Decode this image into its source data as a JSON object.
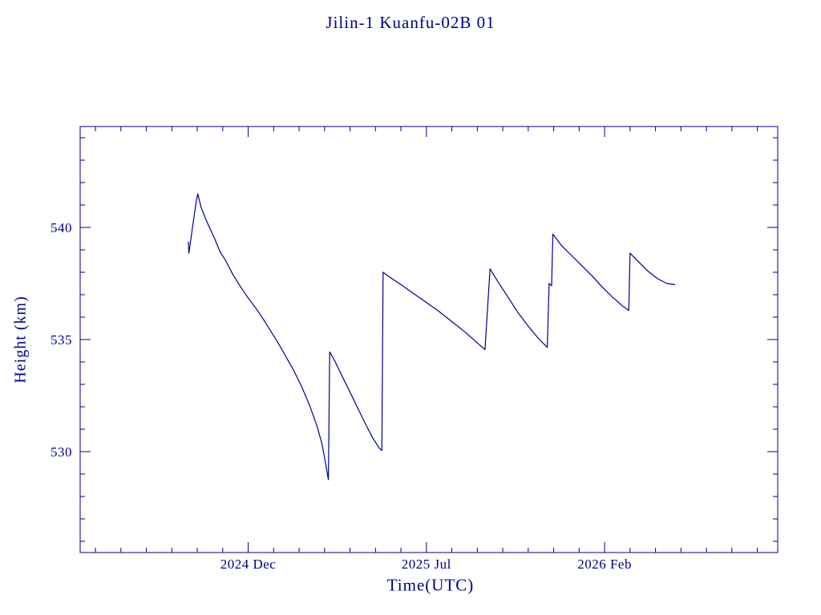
{
  "chart_data": {
    "type": "line",
    "title": "Jilin-1 Kuanfu-02B 01",
    "xlabel": "Time(UTC)",
    "ylabel": "Height (km)",
    "color": "#00008B",
    "grid": false,
    "legend": "none",
    "x_unit": "months relative to 2024 Dec",
    "xlim": [
      -6.6,
      20.8
    ],
    "ylim": [
      525.5,
      544.5
    ],
    "x_minor_step": 1,
    "y_minor_step": 1,
    "x_ticks": [
      {
        "pos": 0,
        "label": "2024 Dec"
      },
      {
        "pos": 7,
        "label": "2025 Jul"
      },
      {
        "pos": 14,
        "label": "2026 Feb"
      }
    ],
    "y_ticks": [
      530,
      535,
      540
    ],
    "series": [
      {
        "name": "orbit-height-km",
        "points": [
          [
            -2.35,
            539.35
          ],
          [
            -2.33,
            538.85
          ],
          [
            -2.2,
            539.9
          ],
          [
            -2.05,
            541.1
          ],
          [
            -1.98,
            541.5
          ],
          [
            -1.85,
            540.9
          ],
          [
            -1.7,
            540.45
          ],
          [
            -1.5,
            539.95
          ],
          [
            -1.3,
            539.45
          ],
          [
            -1.1,
            538.9
          ],
          [
            -0.9,
            538.55
          ],
          [
            -0.6,
            537.9
          ],
          [
            -0.3,
            537.35
          ],
          [
            0.0,
            536.85
          ],
          [
            0.3,
            536.4
          ],
          [
            0.6,
            535.9
          ],
          [
            0.9,
            535.35
          ],
          [
            1.2,
            534.8
          ],
          [
            1.5,
            534.2
          ],
          [
            1.8,
            533.6
          ],
          [
            2.1,
            532.9
          ],
          [
            2.4,
            532.1
          ],
          [
            2.7,
            531.15
          ],
          [
            2.9,
            530.35
          ],
          [
            3.05,
            529.4
          ],
          [
            3.15,
            528.75
          ],
          [
            3.2,
            534.45
          ],
          [
            3.4,
            534.05
          ],
          [
            3.7,
            533.35
          ],
          [
            4.0,
            532.65
          ],
          [
            4.3,
            531.95
          ],
          [
            4.6,
            531.25
          ],
          [
            4.9,
            530.6
          ],
          [
            5.15,
            530.15
          ],
          [
            5.25,
            530.05
          ],
          [
            5.3,
            538.0
          ],
          [
            5.6,
            537.75
          ],
          [
            6.0,
            537.45
          ],
          [
            6.5,
            537.05
          ],
          [
            7.0,
            536.65
          ],
          [
            7.5,
            536.25
          ],
          [
            8.0,
            535.8
          ],
          [
            8.5,
            535.35
          ],
          [
            9.0,
            534.85
          ],
          [
            9.3,
            534.55
          ],
          [
            9.5,
            538.15
          ],
          [
            9.8,
            537.6
          ],
          [
            10.2,
            536.9
          ],
          [
            10.6,
            536.2
          ],
          [
            11.0,
            535.6
          ],
          [
            11.4,
            535.05
          ],
          [
            11.75,
            534.65
          ],
          [
            11.82,
            537.5
          ],
          [
            11.92,
            537.4
          ],
          [
            11.97,
            539.7
          ],
          [
            12.3,
            539.2
          ],
          [
            12.7,
            538.75
          ],
          [
            13.1,
            538.3
          ],
          [
            13.5,
            537.85
          ],
          [
            13.9,
            537.35
          ],
          [
            14.3,
            536.9
          ],
          [
            14.7,
            536.5
          ],
          [
            14.95,
            536.3
          ],
          [
            15.0,
            538.85
          ],
          [
            15.35,
            538.45
          ],
          [
            15.7,
            538.05
          ],
          [
            16.1,
            537.7
          ],
          [
            16.45,
            537.5
          ],
          [
            16.75,
            537.45
          ]
        ]
      }
    ]
  }
}
